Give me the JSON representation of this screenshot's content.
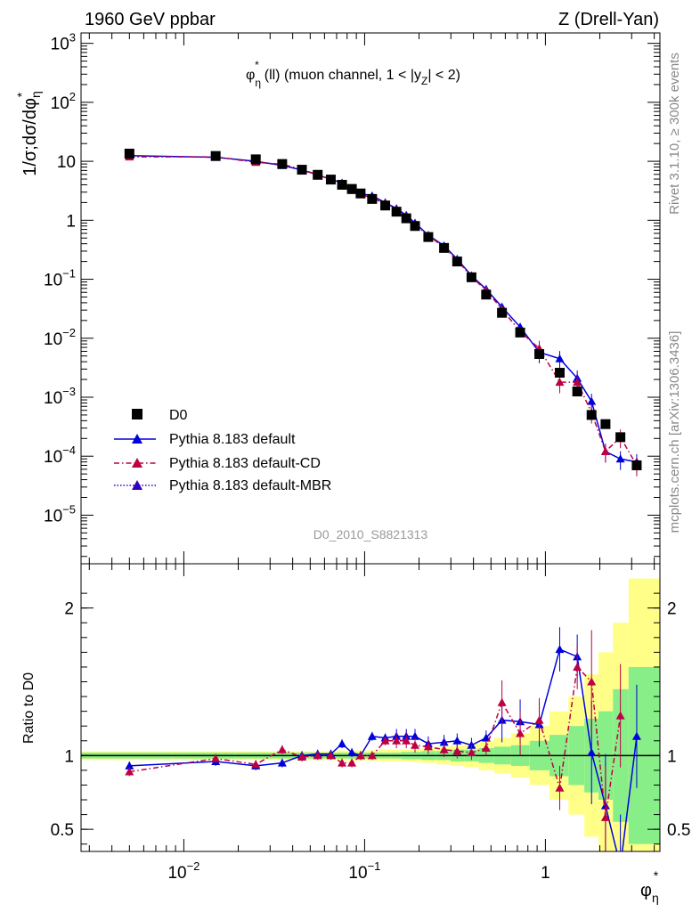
{
  "chart_data": {
    "type": "scatter",
    "header_left": "1960 GeV ppbar",
    "header_right": "Z (Drell-Yan)",
    "title": {
      "phi": "φ",
      "star": "*",
      "eta": "η",
      "rest": "(ll) (muon channel, 1 < |y",
      "z": "Z",
      "end": "| < 2)"
    },
    "ylabel": {
      "main": "1/σ;dσ/dφ",
      "star": "*",
      "eta": "η"
    },
    "ratio_ylabel": "Ratio to D0",
    "xlabel": {
      "phi": "φ",
      "star": "*",
      "eta": "η"
    },
    "side_top": "Rivet 3.1.10, ≥ 300k events",
    "side_bottom": "mcplots.cern.ch [arXiv:1306.3436]",
    "watermark": "D0_2010_S8821313",
    "x_scale": "log",
    "xlim": [
      0.0027,
      4.3
    ],
    "y_scale": "log",
    "ylim": [
      1.5e-06,
      1500
    ],
    "ratio_ylim": [
      0.35,
      2.3
    ],
    "y_ticks": [
      {
        "v": 1e-05,
        "m": "10",
        "e": "−5"
      },
      {
        "v": 0.0001,
        "m": "10",
        "e": "−4"
      },
      {
        "v": 0.001,
        "m": "10",
        "e": "−3"
      },
      {
        "v": 0.01,
        "m": "10",
        "e": "−2"
      },
      {
        "v": 0.1,
        "m": "10",
        "e": "−1"
      },
      {
        "v": 1,
        "m": "1",
        "e": ""
      },
      {
        "v": 10,
        "m": "10",
        "e": ""
      },
      {
        "v": 100,
        "m": "10",
        "e": "2"
      },
      {
        "v": 1000,
        "m": "10",
        "e": "3"
      }
    ],
    "x_ticks": [
      {
        "v": 0.01,
        "m": "10",
        "e": "−2"
      },
      {
        "v": 0.1,
        "m": "10",
        "e": "−1"
      },
      {
        "v": 1,
        "m": "1",
        "e": ""
      }
    ],
    "ratio_ticks": [
      {
        "v": 0.5,
        "label": "0.5"
      },
      {
        "v": 1,
        "label": "1"
      },
      {
        "v": 2,
        "label": "2"
      }
    ],
    "x": [
      0.005,
      0.015,
      0.025,
      0.035,
      0.045,
      0.055,
      0.065,
      0.075,
      0.085,
      0.095,
      0.11,
      0.13,
      0.15,
      0.17,
      0.19,
      0.225,
      0.275,
      0.325,
      0.39,
      0.47,
      0.575,
      0.725,
      0.925,
      1.2,
      1.5,
      1.8,
      2.15,
      2.6,
      3.2,
      3.8
    ],
    "series": [
      {
        "name": "D0",
        "color": "#000000",
        "values": [
          13.5,
          12.3,
          10.8,
          9.0,
          7.2,
          5.9,
          4.9,
          4.0,
          3.4,
          2.85,
          2.3,
          1.78,
          1.4,
          1.08,
          0.8,
          0.52,
          0.34,
          0.2,
          0.108,
          0.055,
          0.027,
          0.0125,
          0.0054,
          0.0026,
          0.00125,
          0.0005,
          0.00035,
          0.00021,
          7e-05,
          0.0
        ]
      },
      {
        "name": "Pythia 8.183 default",
        "color": "#0000dd",
        "values": [
          12.5,
          11.7,
          10.0,
          8.5,
          7.1,
          5.9,
          4.95,
          4.3,
          3.45,
          2.85,
          2.6,
          2.0,
          1.58,
          1.22,
          0.9,
          0.56,
          0.37,
          0.22,
          0.115,
          0.068,
          0.034,
          0.0155,
          0.0058,
          0.0045,
          0.0021,
          0.00085,
          0.00012,
          9e-05,
          8e-05,
          0.0
        ],
        "ratio": [
          0.93,
          0.96,
          0.93,
          0.95,
          1.0,
          1.01,
          1.01,
          1.08,
          1.02,
          1.0,
          1.13,
          1.12,
          1.13,
          1.13,
          1.13,
          1.08,
          1.09,
          1.1,
          1.07,
          1.12,
          1.24,
          1.23,
          1.21,
          1.72,
          1.67,
          1.02,
          0.66,
          0.25,
          1.13,
          0.0
        ]
      },
      {
        "name": "Pythia 8.183 default-CD",
        "color": "#bb0044",
        "values": [
          11.9,
          11.9,
          9.6,
          8.9,
          7.3,
          5.9,
          4.9,
          3.8,
          3.2,
          2.8,
          2.35,
          1.95,
          1.5,
          1.15,
          0.85,
          0.55,
          0.35,
          0.21,
          0.11,
          0.065,
          0.031,
          0.013,
          0.0067,
          0.0018,
          0.0018,
          0.00055,
          0.00012,
          0.00021,
          7e-05,
          0.0
        ],
        "ratio": [
          0.89,
          0.98,
          0.94,
          1.04,
          0.99,
          1.0,
          1.0,
          0.95,
          0.95,
          1.0,
          1.0,
          1.1,
          1.1,
          1.1,
          1.07,
          1.06,
          1.04,
          1.03,
          1.02,
          1.05,
          1.36,
          1.15,
          1.24,
          0.78,
          1.6,
          1.5,
          0.58,
          1.27,
          0.0,
          0.0
        ]
      },
      {
        "name": "Pythia 8.183 default-MBR",
        "color": "#3300bb",
        "values": [],
        "ratio": []
      }
    ],
    "band_green": [
      0.02,
      0.02,
      0.02,
      0.02,
      0.02,
      0.02,
      0.02,
      0.02,
      0.02,
      0.02,
      0.02,
      0.02,
      0.02,
      0.025,
      0.025,
      0.03,
      0.03,
      0.04,
      0.04,
      0.05,
      0.06,
      0.07,
      0.1,
      0.14,
      0.2,
      0.25,
      0.3,
      0.45,
      0.6,
      0.6
    ],
    "band_yellow": [
      0.03,
      0.03,
      0.03,
      0.03,
      0.03,
      0.03,
      0.03,
      0.035,
      0.035,
      0.035,
      0.035,
      0.04,
      0.04,
      0.04,
      0.045,
      0.05,
      0.06,
      0.07,
      0.08,
      0.1,
      0.12,
      0.15,
      0.2,
      0.3,
      0.4,
      0.55,
      0.7,
      0.9,
      1.2,
      1.2
    ],
    "legend_position": "bottom-left",
    "grid": false
  }
}
